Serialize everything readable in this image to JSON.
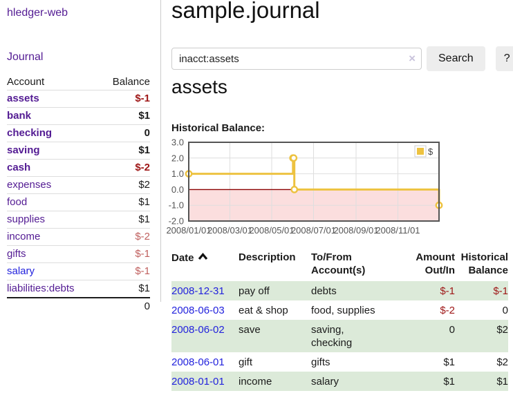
{
  "app": {
    "brand": "hledger-web",
    "nav_journal": "Journal"
  },
  "colors": {
    "purple_link": "#531b93",
    "blue_link": "#2222dd",
    "negative_strong": "#9e1616",
    "negative_light": "#c0605f",
    "row_stripe_green": "#dcead9",
    "button_bg": "#ededed"
  },
  "sidebar": {
    "accounts_header": {
      "account": "Account",
      "balance": "Balance"
    },
    "accounts": [
      {
        "name": "assets",
        "balance": "$-1",
        "indent": 1,
        "emphasis": "bold",
        "balance_tone": "neg-strong",
        "link_tone": "purple"
      },
      {
        "name": "bank",
        "balance": "$1",
        "indent": 2,
        "emphasis": "bold",
        "balance_tone": "normal",
        "link_tone": "purple"
      },
      {
        "name": "checking",
        "balance": "0",
        "indent": 3,
        "emphasis": "bold",
        "balance_tone": "normal",
        "link_tone": "purple"
      },
      {
        "name": "saving",
        "balance": "$1",
        "indent": 3,
        "emphasis": "bold",
        "balance_tone": "normal",
        "link_tone": "purple"
      },
      {
        "name": "cash",
        "balance": "$-2",
        "indent": 2,
        "emphasis": "bold",
        "balance_tone": "neg-strong",
        "link_tone": "purple"
      },
      {
        "name": "expenses",
        "balance": "$2",
        "indent": 1,
        "emphasis": "normal",
        "balance_tone": "normal",
        "link_tone": "purple"
      },
      {
        "name": "food",
        "balance": "$1",
        "indent": 2,
        "emphasis": "normal",
        "balance_tone": "normal",
        "link_tone": "purple"
      },
      {
        "name": "supplies",
        "balance": "$1",
        "indent": 2,
        "emphasis": "normal",
        "balance_tone": "normal",
        "link_tone": "purple"
      },
      {
        "name": "income",
        "balance": "$-2",
        "indent": 1,
        "emphasis": "normal",
        "balance_tone": "neg-light",
        "link_tone": "purple"
      },
      {
        "name": "gifts",
        "balance": "$-1",
        "indent": 2,
        "emphasis": "normal",
        "balance_tone": "neg-light",
        "link_tone": "purple"
      },
      {
        "name": "salary",
        "balance": "$-1",
        "indent": 2,
        "emphasis": "normal",
        "balance_tone": "neg-light",
        "link_tone": "blue"
      },
      {
        "name": "liabilities:debts",
        "balance": "$1",
        "indent": 1,
        "emphasis": "normal",
        "balance_tone": "normal",
        "link_tone": "purple"
      }
    ],
    "total": "0"
  },
  "header": {
    "title": "sample.journal"
  },
  "search": {
    "value": "inacct:assets",
    "clear_icon": "×",
    "button": "Search",
    "help_button": "?"
  },
  "account_page": {
    "title": "assets",
    "chart_title": "Historical Balance:"
  },
  "chart_data": {
    "type": "line",
    "title": "Historical Balance:",
    "step": true,
    "xlim": [
      "2008-01-01",
      "2008-12-31"
    ],
    "ylim": [
      -2,
      3
    ],
    "y_ticks": [
      3.0,
      2.0,
      1.0,
      0.0,
      -1.0,
      -2.0
    ],
    "x_ticks": [
      "2008/01/01",
      "2008/03/01",
      "2008/05/01",
      "2008/07/01",
      "2008/09/01",
      "2008/11/01"
    ],
    "series": [
      {
        "name": "$",
        "color": "#edc240",
        "points": [
          [
            "2008-01-01",
            1
          ],
          [
            "2008-06-01",
            2
          ],
          [
            "2008-06-02",
            2
          ],
          [
            "2008-06-03",
            0
          ],
          [
            "2008-12-31",
            -1
          ]
        ]
      }
    ],
    "legend_position": "top-right",
    "negative_region_color": "#fbdede",
    "zero_line_color": "#8b0000",
    "border_color": "#545454",
    "grid_color": "#dedede",
    "tick_label_color": "#545454"
  },
  "register": {
    "columns": [
      "Date",
      "Description",
      "To/From Account(s)",
      "Amount Out/In",
      "Historical Balance"
    ],
    "rows": [
      {
        "date": "2008-12-31",
        "description": "pay off",
        "accounts": "debts",
        "amount": "$-1",
        "amount_tone": "neg",
        "balance": "$-1",
        "balance_tone": "neg",
        "stripe": true
      },
      {
        "date": "2008-06-03",
        "description": "eat & shop",
        "accounts": "food, supplies",
        "amount": "$-2",
        "amount_tone": "neg",
        "balance": "0",
        "balance_tone": "normal",
        "stripe": false
      },
      {
        "date": "2008-06-02",
        "description": "save",
        "accounts": "saving, checking",
        "amount": "0",
        "amount_tone": "normal",
        "balance": "$2",
        "balance_tone": "normal",
        "stripe": true
      },
      {
        "date": "2008-06-01",
        "description": "gift",
        "accounts": "gifts",
        "amount": "$1",
        "amount_tone": "normal",
        "balance": "$2",
        "balance_tone": "normal",
        "stripe": false
      },
      {
        "date": "2008-01-01",
        "description": "income",
        "accounts": "salary",
        "amount": "$1",
        "amount_tone": "normal",
        "balance": "$1",
        "balance_tone": "normal",
        "stripe": true
      }
    ]
  }
}
